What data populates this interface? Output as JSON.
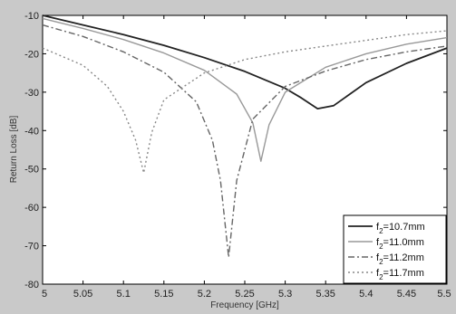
{
  "chart_data": {
    "type": "line",
    "title": "",
    "xlabel": "Frequency [GHz]",
    "ylabel": "Return Loss [dB]",
    "xlim": [
      5.0,
      5.5
    ],
    "ylim": [
      -80,
      -10
    ],
    "x_ticks": [
      "5",
      "5.05",
      "5.1",
      "5.15",
      "5.2",
      "5.25",
      "5.3",
      "5.35",
      "5.4",
      "5.45",
      "5.5"
    ],
    "y_ticks": [
      "-10",
      "-20",
      "-30",
      "-40",
      "-50",
      "-60",
      "-70",
      "-80"
    ],
    "grid": false,
    "legend_position": "bottom-right",
    "series": [
      {
        "name": "f2=10.7mm",
        "legend_main": "f",
        "legend_sub": "2",
        "legend_rest": "=10.7mm",
        "color": "#222222",
        "dash": "solid",
        "x": [
          5.0,
          5.05,
          5.1,
          5.15,
          5.2,
          5.25,
          5.3,
          5.32,
          5.34,
          5.36,
          5.4,
          5.45,
          5.5
        ],
        "y": [
          -10.0,
          -12.5,
          -15.0,
          -17.8,
          -21.0,
          -24.6,
          -29.0,
          -31.5,
          -34.3,
          -33.5,
          -27.5,
          -22.5,
          -18.5
        ]
      },
      {
        "name": "f2=11.0mm",
        "legend_main": "f",
        "legend_sub": "2",
        "legend_rest": "=11.0mm",
        "color": "#999999",
        "dash": "solid",
        "x": [
          5.0,
          5.05,
          5.1,
          5.15,
          5.2,
          5.24,
          5.26,
          5.27,
          5.28,
          5.3,
          5.35,
          5.4,
          5.45,
          5.5
        ],
        "y": [
          -10.8,
          -13.4,
          -16.3,
          -19.8,
          -24.3,
          -30.5,
          -38.0,
          -48.0,
          -38.5,
          -30.0,
          -23.5,
          -20.0,
          -17.5,
          -15.8
        ]
      },
      {
        "name": "f2=11.2mm",
        "legend_main": "f",
        "legend_sub": "2",
        "legend_rest": "=11.2mm",
        "color": "#666666",
        "dash": "7,3,2,3",
        "x": [
          5.0,
          5.05,
          5.1,
          5.15,
          5.19,
          5.21,
          5.22,
          5.23,
          5.24,
          5.26,
          5.3,
          5.35,
          5.4,
          5.45,
          5.5
        ],
        "y": [
          -12.5,
          -15.5,
          -19.5,
          -24.8,
          -32.5,
          -42.5,
          -53.0,
          -73.0,
          -53.0,
          -37.0,
          -28.5,
          -24.5,
          -21.5,
          -19.5,
          -18.0
        ]
      },
      {
        "name": "f2=11.7mm",
        "legend_main": "f",
        "legend_sub": "2",
        "legend_rest": "=11.7mm",
        "color": "#888888",
        "dash": "2,3",
        "x": [
          5.0,
          5.05,
          5.08,
          5.1,
          5.115,
          5.125,
          5.135,
          5.15,
          5.2,
          5.25,
          5.3,
          5.35,
          5.4,
          5.45,
          5.5
        ],
        "y": [
          -18.5,
          -23.0,
          -28.5,
          -35.0,
          -42.5,
          -51.0,
          -40.5,
          -32.0,
          -25.0,
          -21.5,
          -19.5,
          -18.0,
          -16.5,
          -15.0,
          -14.0
        ]
      }
    ]
  }
}
